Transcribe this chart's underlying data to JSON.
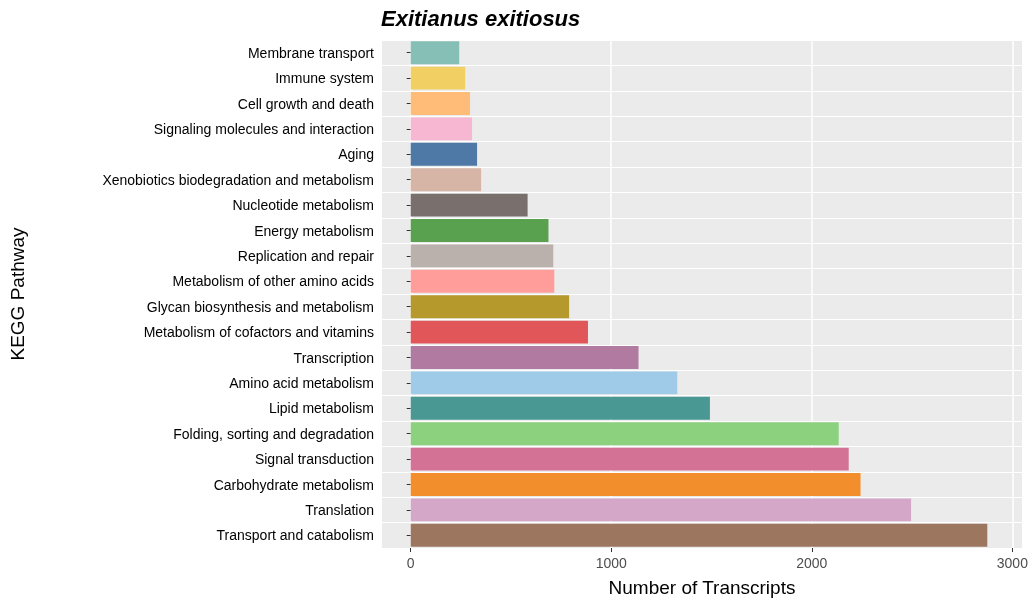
{
  "chart_data": {
    "type": "bar",
    "orientation": "horizontal",
    "title": "Exitianus exitiosus",
    "xlabel": "Number of Transcripts",
    "ylabel": "KEGG Pathway",
    "categories": [
      "Membrane transport",
      "Immune system",
      "Cell growth and death",
      "Signaling molecules and interaction",
      "Aging",
      "Xenobiotics biodegradation and metabolism",
      "Nucleotide metabolism",
      "Energy metabolism",
      "Replication and repair",
      "Metabolism of other amino acids",
      "Glycan biosynthesis and metabolism",
      "Metabolism of cofactors and vitamins",
      "Transcription",
      "Amino acid metabolism",
      "Lipid metabolism",
      "Folding, sorting and degradation",
      "Signal transduction",
      "Carbohydrate metabolism",
      "Translation",
      "Transport and catabolism"
    ],
    "values": [
      242,
      272,
      296,
      306,
      331,
      351,
      583,
      687,
      711,
      716,
      790,
      884,
      1136,
      1329,
      1492,
      2134,
      2184,
      2243,
      2495,
      2875
    ],
    "colors": [
      "#86bfb5",
      "#f2cf63",
      "#ffbb78",
      "#f7b6d2",
      "#4e79a7",
      "#d7b5a6",
      "#79706e",
      "#59a14f",
      "#bab0ac",
      "#ff9d9a",
      "#b6992d",
      "#e15759",
      "#b07aa1",
      "#a0cbe8",
      "#499894",
      "#8cd17d",
      "#d37295",
      "#f28e2b",
      "#d4a6c8",
      "#9d7660"
    ],
    "xlim": [
      -143,
      3048
    ],
    "xticks": [
      0,
      1000,
      2000,
      3000
    ],
    "grid": true
  }
}
